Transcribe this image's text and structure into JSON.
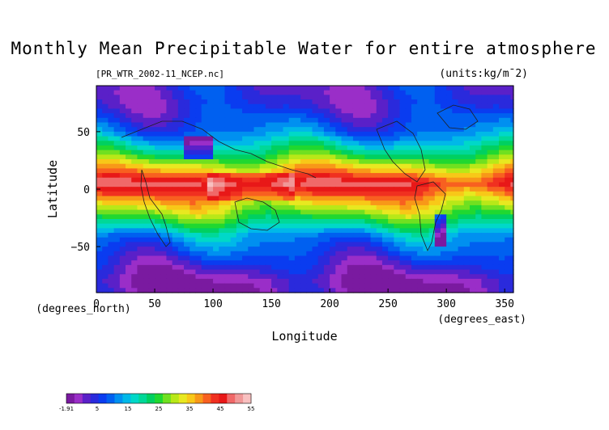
{
  "chart_data": {
    "type": "heatmap",
    "title": "Monthly Mean Precipitable Water for entire atmosphere",
    "file_label": "[PR_WTR_2002-11_NCEP.nc]",
    "units_label": "(units:kg/m¯2)",
    "xlabel": "Longitude",
    "ylabel": "Latitude",
    "x_unit_label": "(degrees_east)",
    "y_unit_label": "(degrees_north)",
    "xlim": [
      0,
      357.5
    ],
    "ylim": [
      -90,
      90
    ],
    "x_ticks": [
      0,
      50,
      100,
      150,
      200,
      250,
      300,
      350
    ],
    "y_ticks": [
      50,
      0,
      -50
    ],
    "colorbar": {
      "min": -1.91,
      "max": 55,
      "tick_labels": [
        "-1.91",
        "5",
        "15",
        "25",
        "35",
        "45",
        "55"
      ],
      "colors": [
        "#7a1aa0",
        "#9a2ec8",
        "#5a20c8",
        "#2a2adc",
        "#0a3cf0",
        "#0060f0",
        "#0090f0",
        "#00b8e8",
        "#00d8c8",
        "#00d898",
        "#00d060",
        "#20d830",
        "#70e020",
        "#b8e818",
        "#e8e820",
        "#f8c818",
        "#f89818",
        "#f86020",
        "#f03020",
        "#e81818",
        "#f06868",
        "#f09898",
        "#f8c0c0"
      ]
    },
    "field": {
      "description_lat_bands": [
        {
          "lat_range": [
            60,
            90
          ],
          "approx_value": 6
        },
        {
          "lat_range": [
            40,
            60
          ],
          "approx_value": 12
        },
        {
          "lat_range": [
            20,
            40
          ],
          "approx_value": 25
        },
        {
          "lat_range": [
            -10,
            20
          ],
          "approx_value": 47
        },
        {
          "lat_range": [
            -30,
            -10
          ],
          "approx_value": 30
        },
        {
          "lat_range": [
            -50,
            -30
          ],
          "approx_value": 15
        },
        {
          "lat_range": [
            -70,
            -50
          ],
          "approx_value": 8
        },
        {
          "lat_range": [
            -90,
            -70
          ],
          "approx_value": 1
        }
      ]
    }
  }
}
